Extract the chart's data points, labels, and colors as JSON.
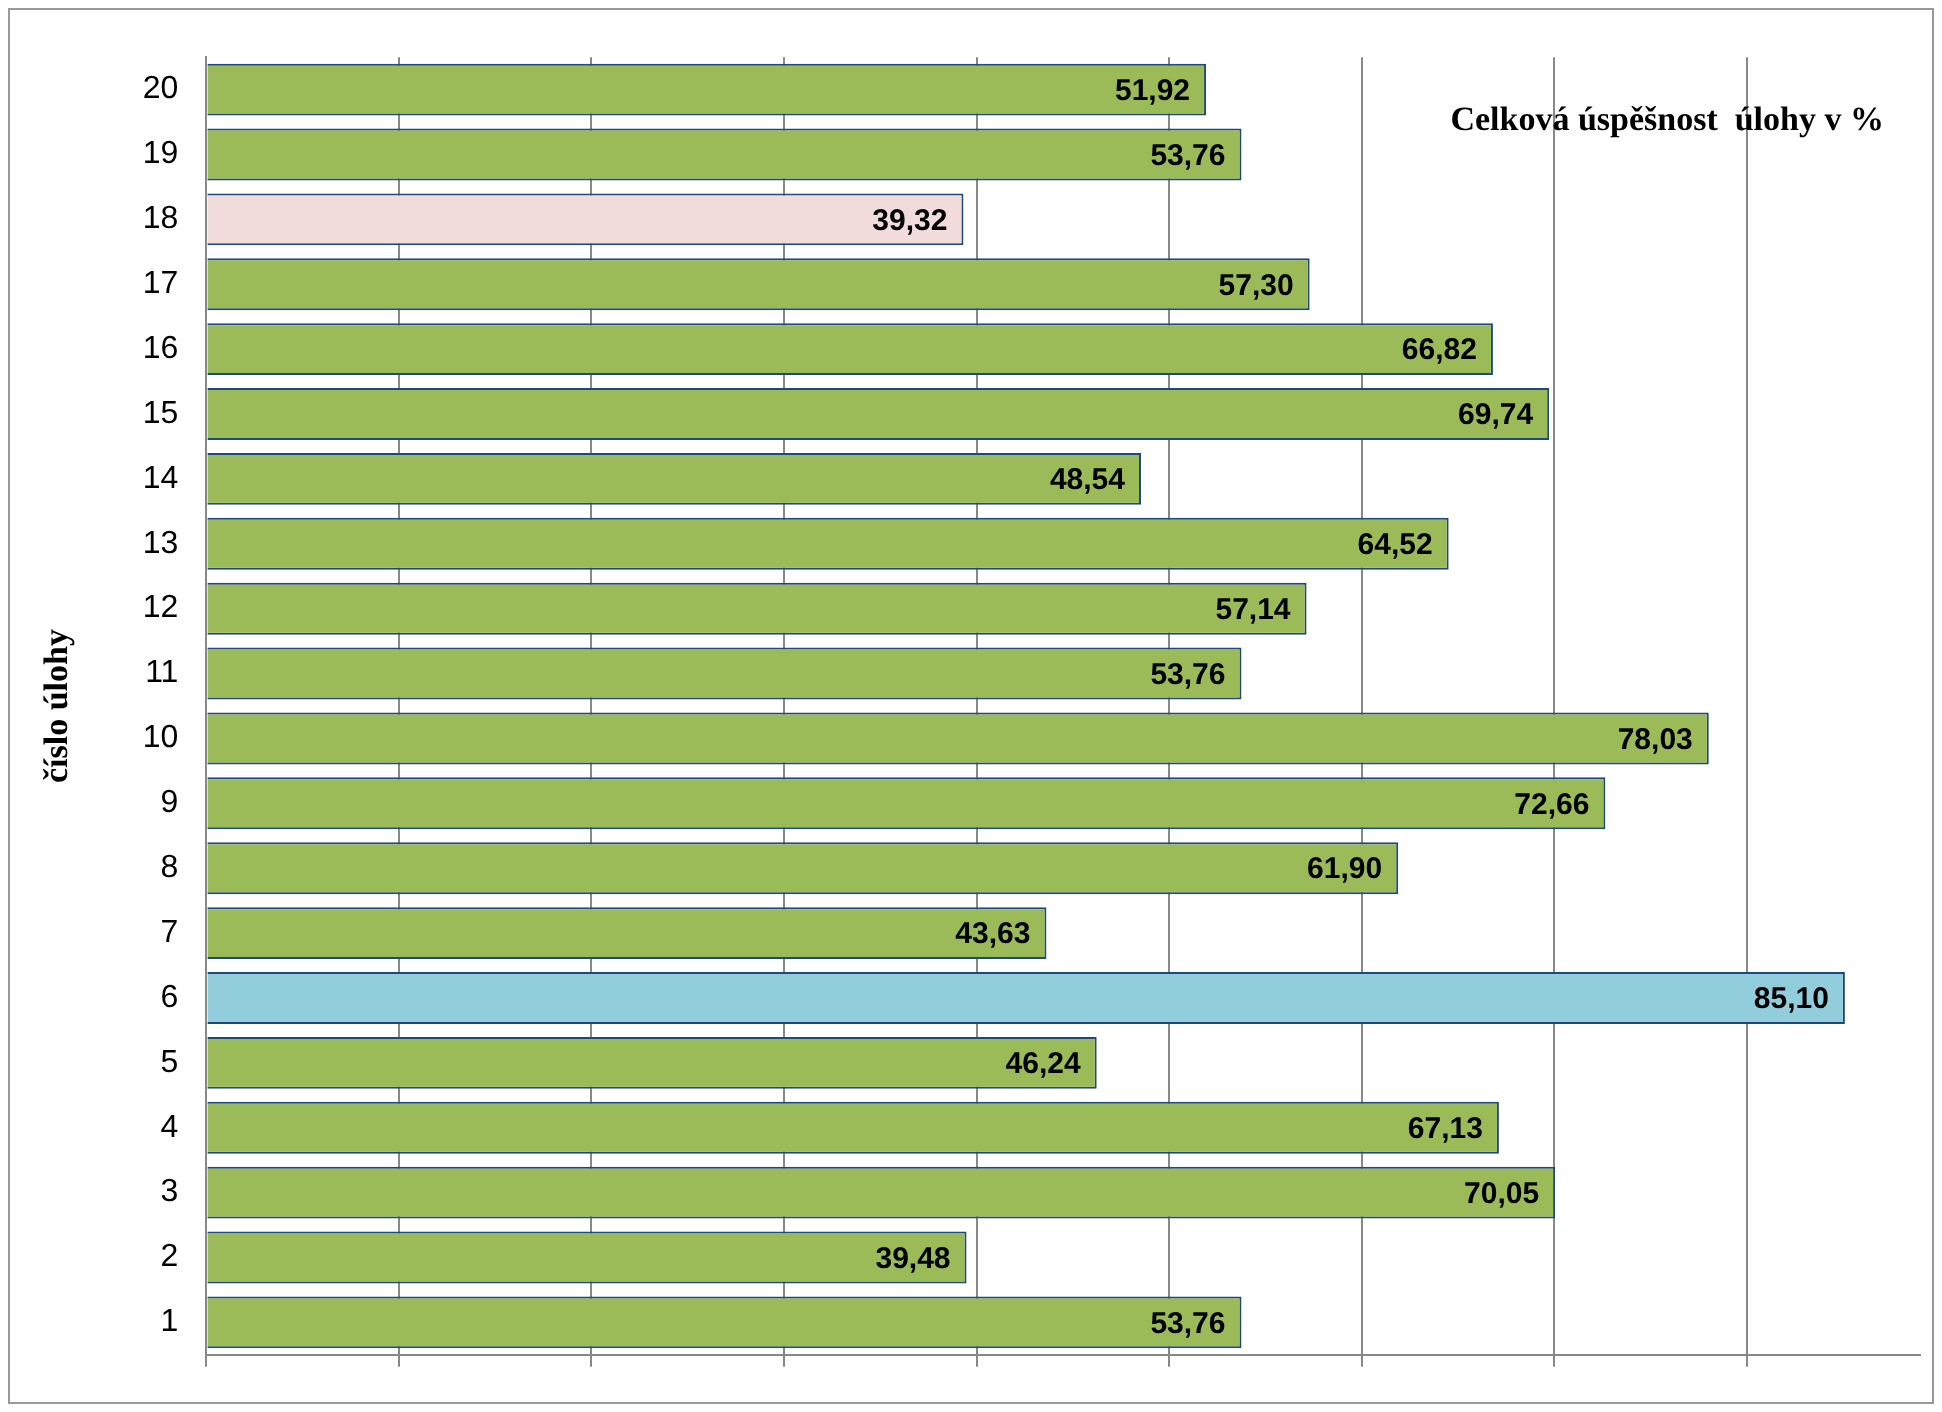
{
  "chart_data": {
    "type": "bar",
    "orientation": "horizontal",
    "title": "Celková úspěšnost  úlohy v %",
    "ylabel": "číslo úlohy",
    "categories": [
      "20",
      "19",
      "18",
      "17",
      "16",
      "15",
      "14",
      "13",
      "12",
      "11",
      "10",
      "9",
      "8",
      "7",
      "6",
      "5",
      "4",
      "3",
      "2",
      "1"
    ],
    "values": [
      51.92,
      53.76,
      39.32,
      57.3,
      66.82,
      69.74,
      48.54,
      64.52,
      57.14,
      53.76,
      78.03,
      72.66,
      61.9,
      43.63,
      85.1,
      46.24,
      67.13,
      70.05,
      39.48,
      53.76
    ],
    "value_labels": [
      "51,92",
      "53,76",
      "39,32",
      "57,30",
      "66,82",
      "69,74",
      "48,54",
      "64,52",
      "57,14",
      "53,76",
      "78,03",
      "72,66",
      "61,90",
      "43,63",
      "85,10",
      "46,24",
      "67,13",
      "70,05",
      "39,48",
      "53,76"
    ],
    "colors": [
      "#9bbb59",
      "#9bbb59",
      "#f2dcdb",
      "#9bbb59",
      "#9bbb59",
      "#9bbb59",
      "#9bbb59",
      "#9bbb59",
      "#9bbb59",
      "#9bbb59",
      "#9bbb59",
      "#9bbb59",
      "#9bbb59",
      "#9bbb59",
      "#92cddc",
      "#9bbb59",
      "#9bbb59",
      "#9bbb59",
      "#9bbb59",
      "#9bbb59"
    ],
    "xlim": [
      0,
      89
    ],
    "xticks": [
      {
        "value": 0,
        "label": null
      },
      {
        "value": 10,
        "label": null
      },
      {
        "value": 20,
        "label": null
      },
      {
        "value": 30,
        "label": null
      },
      {
        "value": 40,
        "label": null
      },
      {
        "value": 50,
        "label": null
      },
      {
        "value": 60,
        "label": null
      },
      {
        "value": 70,
        "label": null
      },
      {
        "value": 80,
        "label": null
      }
    ],
    "grid": "x",
    "tick_labels": "y",
    "legend": false
  }
}
